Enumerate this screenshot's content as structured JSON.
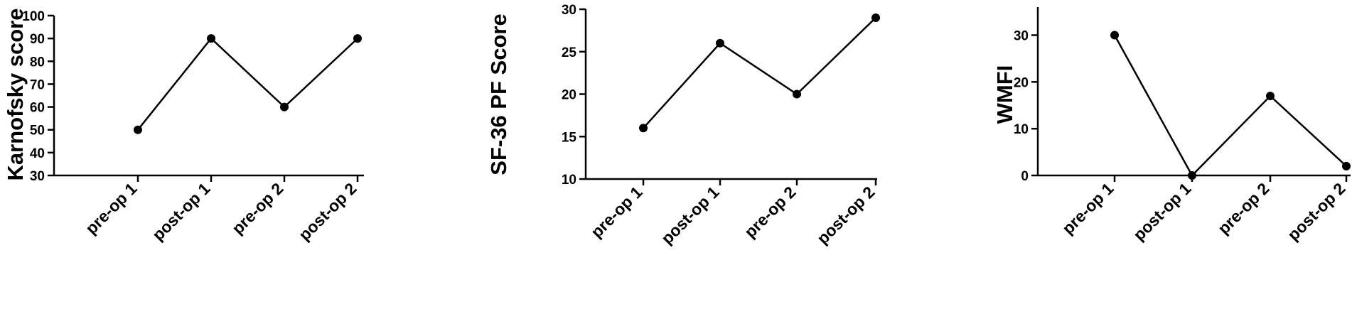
{
  "chart_data": [
    {
      "type": "line",
      "ylabel": "Karnofsky score",
      "categories": [
        "pre-op 1",
        "post-op 1",
        "pre-op 2",
        "post-op 2"
      ],
      "values": [
        50,
        90,
        60,
        90
      ],
      "ylim": [
        30,
        100
      ],
      "yticks": [
        "30",
        "40",
        "50",
        "60",
        "70",
        "80",
        "90",
        "100"
      ],
      "grid": false,
      "legend": "none"
    },
    {
      "type": "line",
      "ylabel": "SF-36 PF Score",
      "categories": [
        "pre-op 1",
        "post-op 1",
        "pre-op 2",
        "post-op 2"
      ],
      "values": [
        16,
        26,
        20,
        29
      ],
      "ylim": [
        10,
        30
      ],
      "yticks": [
        "10",
        "15",
        "20",
        "25",
        "30"
      ],
      "grid": false,
      "legend": "none"
    },
    {
      "type": "line",
      "ylabel": "WMFI",
      "categories": [
        "pre-op 1",
        "post-op 1",
        "pre-op 2",
        "post-op 2"
      ],
      "values": [
        30,
        0,
        17,
        2
      ],
      "ylim": [
        0,
        36
      ],
      "yticks": [
        "0",
        "10",
        "20",
        "30"
      ],
      "grid": false,
      "legend": "none"
    }
  ]
}
